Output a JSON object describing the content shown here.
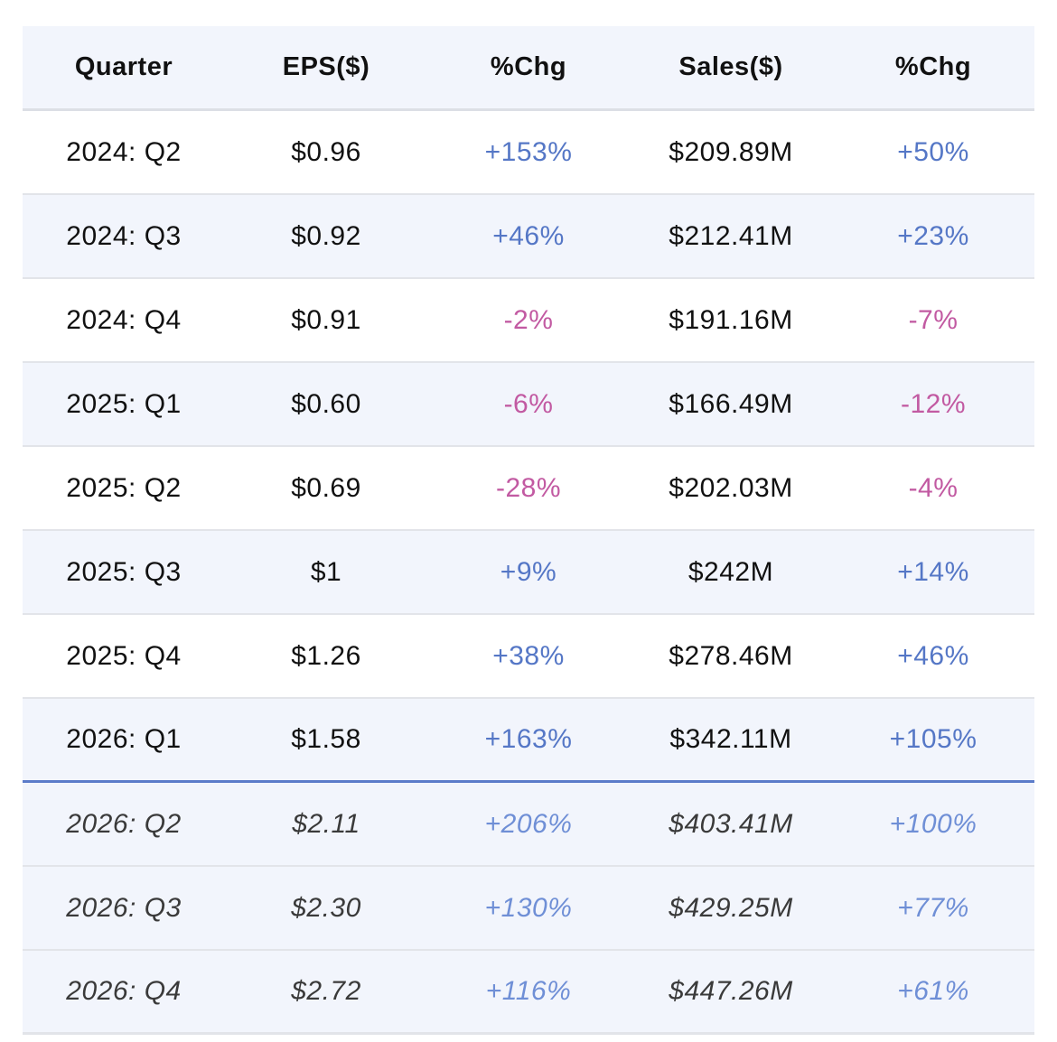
{
  "header": {
    "quarter": "Quarter",
    "eps": "EPS($)",
    "eps_chg": "%Chg",
    "sales": "Sales($)",
    "sales_chg": "%Chg"
  },
  "colors": {
    "positive": "#5577c6",
    "negative": "#c25aa2",
    "row_shade": "#f2f5fc",
    "divider": "#5b7cc9"
  },
  "rows": [
    {
      "quarter": "2024: Q2",
      "eps": "$0.96",
      "eps_chg": "+153%",
      "sales": "$209.89M",
      "sales_chg": "+50%"
    },
    {
      "quarter": "2024: Q3",
      "eps": "$0.92",
      "eps_chg": "+46%",
      "sales": "$212.41M",
      "sales_chg": "+23%"
    },
    {
      "quarter": "2024: Q4",
      "eps": "$0.91",
      "eps_chg": "-2%",
      "sales": "$191.16M",
      "sales_chg": "-7%"
    },
    {
      "quarter": "2025: Q1",
      "eps": "$0.60",
      "eps_chg": "-6%",
      "sales": "$166.49M",
      "sales_chg": "-12%"
    },
    {
      "quarter": "2025: Q2",
      "eps": "$0.69",
      "eps_chg": "-28%",
      "sales": "$202.03M",
      "sales_chg": "-4%"
    },
    {
      "quarter": "2025: Q3",
      "eps": "$1",
      "eps_chg": "+9%",
      "sales": "$242M",
      "sales_chg": "+14%"
    },
    {
      "quarter": "2025: Q4",
      "eps": "$1.26",
      "eps_chg": "+38%",
      "sales": "$278.46M",
      "sales_chg": "+46%"
    },
    {
      "quarter": "2026: Q1",
      "eps": "$1.58",
      "eps_chg": "+163%",
      "sales": "$342.11M",
      "sales_chg": "+105%"
    },
    {
      "quarter": "2026: Q2",
      "eps": "$2.11",
      "eps_chg": "+206%",
      "sales": "$403.41M",
      "sales_chg": "+100%"
    },
    {
      "quarter": "2026: Q3",
      "eps": "$2.30",
      "eps_chg": "+130%",
      "sales": "$429.25M",
      "sales_chg": "+77%"
    },
    {
      "quarter": "2026: Q4",
      "eps": "$2.72",
      "eps_chg": "+116%",
      "sales": "$447.26M",
      "sales_chg": "+61%"
    }
  ]
}
